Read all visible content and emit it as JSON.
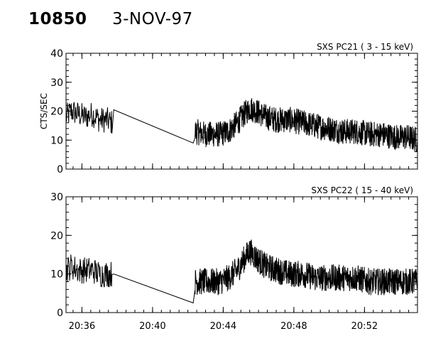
{
  "header": {
    "event_id": "10850",
    "date": "3-NOV-97"
  },
  "chart_data": [
    {
      "type": "line",
      "title": "SXS PC21  (  3 - 15 keV)",
      "ylabel": "CTS/SEC",
      "xlabel": "",
      "x_units": "minutes after 20:00 UT",
      "x_range": [
        35.1,
        55.0
      ],
      "ylim": [
        0,
        40
      ],
      "yticks": [
        0,
        10,
        20,
        30,
        40
      ],
      "xticks": [
        36,
        40,
        44,
        48,
        52
      ],
      "xtick_labels": [
        "20:36",
        "20:40",
        "20:44",
        "20:48",
        "20:52"
      ],
      "show_xtick_labels": false,
      "series": [
        {
          "x": [
            35.1,
            35.4,
            35.8,
            36.2,
            36.6,
            37.0,
            37.4,
            37.7,
            37.8,
            42.3,
            42.4,
            43.0,
            43.8,
            44.3,
            44.8,
            45.2,
            45.5,
            45.9,
            46.4,
            47.0,
            47.8,
            48.5,
            49.2,
            50.0,
            50.8,
            51.5,
            52.3,
            53.0,
            53.8,
            54.5,
            55.0
          ],
          "values": [
            18,
            20,
            19,
            18,
            19,
            17,
            17,
            16,
            20.5,
            9,
            13,
            12,
            12,
            13,
            16,
            19,
            21,
            20,
            18,
            17,
            17,
            16,
            15,
            14,
            13,
            13,
            12,
            12,
            11,
            11,
            10
          ],
          "noise": 4.5
        }
      ]
    },
    {
      "type": "line",
      "title": "SXS PC22  ( 15 - 40 keV)",
      "ylabel": "",
      "xlabel": "",
      "x_units": "minutes after 20:00 UT",
      "x_range": [
        35.1,
        55.0
      ],
      "ylim": [
        0,
        30
      ],
      "yticks": [
        0,
        10,
        20,
        30
      ],
      "xticks": [
        36,
        40,
        44,
        48,
        52
      ],
      "xtick_labels": [
        "20:36",
        "20:40",
        "20:44",
        "20:48",
        "20:52"
      ],
      "show_xtick_labels": true,
      "series": [
        {
          "x": [
            35.1,
            35.4,
            35.8,
            36.2,
            36.6,
            37.0,
            37.4,
            37.7,
            37.8,
            42.3,
            42.4,
            43.0,
            43.8,
            44.3,
            44.8,
            45.2,
            45.5,
            45.9,
            46.4,
            47.0,
            47.8,
            48.5,
            49.2,
            50.0,
            50.8,
            51.5,
            52.3,
            53.0,
            53.8,
            54.5,
            55.0
          ],
          "values": [
            11,
            12,
            11,
            11,
            11,
            10,
            10,
            10,
            10,
            2.5,
            8,
            8,
            8,
            9,
            11,
            14,
            16,
            14,
            12,
            11,
            10,
            10,
            9,
            9,
            9,
            9,
            8,
            8,
            8,
            8,
            8
          ],
          "noise": 3.5
        }
      ]
    }
  ]
}
